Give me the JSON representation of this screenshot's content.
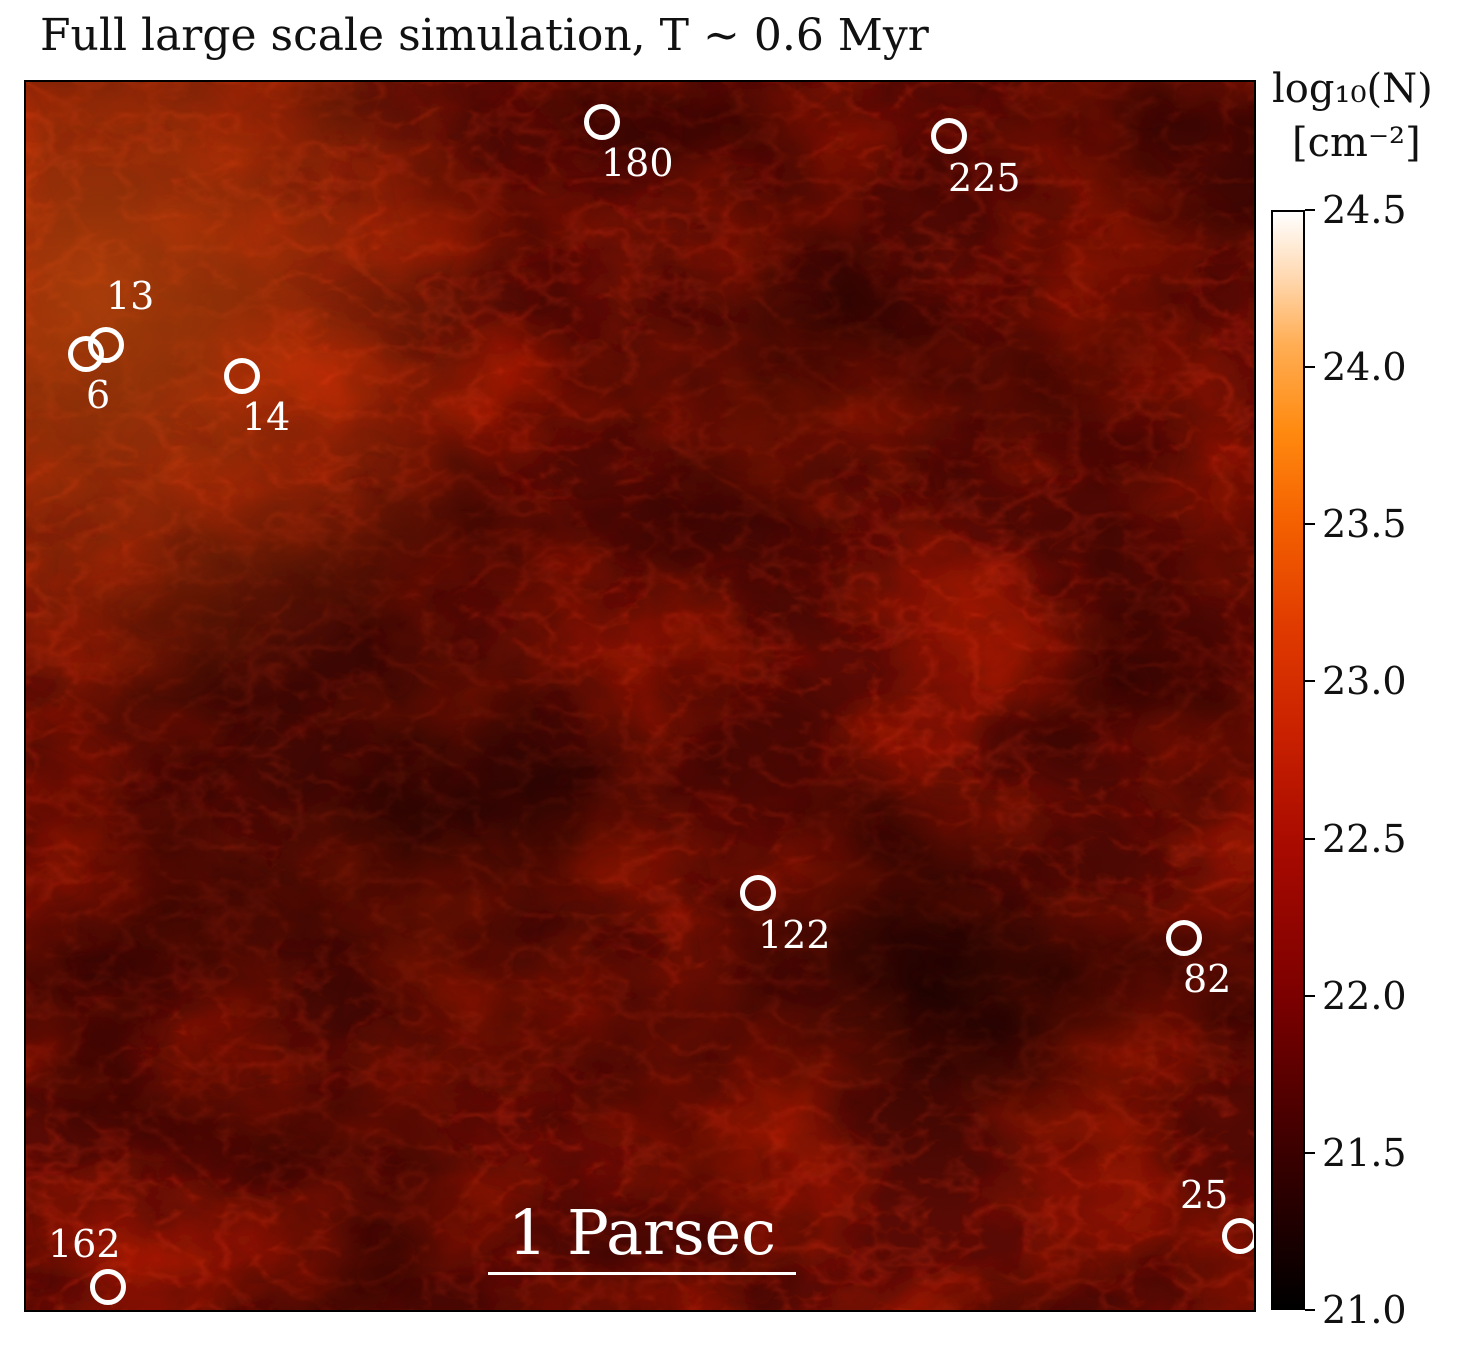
{
  "title": "Full large scale simulation, T ~ 0.6 Myr",
  "scale_bar": "1 Parsec",
  "colorbar": {
    "title_line1": "log₁₀(N)",
    "title_line2": "[cm⁻²]",
    "ticks": [
      "21.0",
      "21.5",
      "22.0",
      "22.5",
      "23.0",
      "23.5",
      "24.0",
      "24.5"
    ],
    "range": [
      21.0,
      24.5
    ],
    "colormap": "gist_heat"
  },
  "sources": [
    {
      "label": "180"
    },
    {
      "label": "225"
    },
    {
      "label": "13"
    },
    {
      "label": "6"
    },
    {
      "label": "14"
    },
    {
      "label": "122"
    },
    {
      "label": "82"
    },
    {
      "label": "25"
    },
    {
      "label": "162"
    }
  ],
  "colors": {
    "map_base": "#5a0a04",
    "map_bright": "#b81a08",
    "map_dark": "#200000",
    "marker": "#ffffff"
  }
}
